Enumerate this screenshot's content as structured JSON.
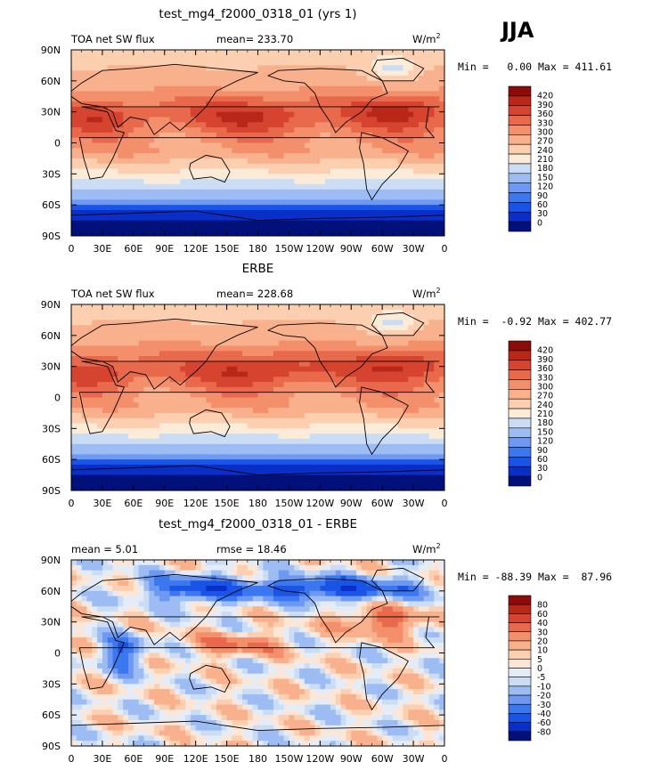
{
  "season": "JJA",
  "units": "W/m",
  "units_exp": "2",
  "xticks": [
    "0",
    "30E",
    "60E",
    "90E",
    "120E",
    "150E",
    "180",
    "150W",
    "120W",
    "90W",
    "60W",
    "30W",
    "0"
  ],
  "yticks": [
    "90N",
    "60N",
    "30N",
    "0",
    "30S",
    "60S",
    "90S"
  ],
  "colors": {
    "abs": [
      "#02107a",
      "#0a2fc8",
      "#1a54e6",
      "#3b77ef",
      "#6d99f2",
      "#9dbcf3",
      "#cbdcf5",
      "#fbebd9",
      "#fbcfb0",
      "#f9b08c",
      "#f48f6b",
      "#e8694b",
      "#d64430",
      "#b82718",
      "#8d0c0a"
    ],
    "diff": [
      "#02107a",
      "#0a2fc8",
      "#1a54e6",
      "#3b77ef",
      "#6d99f2",
      "#9dbcf3",
      "#cbdcf5",
      "#e4ecf8",
      "#fde6d6",
      "#fbcfb0",
      "#f9b08c",
      "#f48f6b",
      "#e8694b",
      "#d64430",
      "#b82718",
      "#8d0c0a"
    ]
  },
  "panels": [
    {
      "title": "test_mg4_f2000_0318_01 (yrs 1)",
      "left_label": "TOA net SW flux",
      "center_label": "mean= 233.70",
      "minmax": "Min =   0.00 Max = 411.61",
      "kind": "abs",
      "levels": [
        "420",
        "390",
        "360",
        "330",
        "300",
        "270",
        "240",
        "210",
        "180",
        "150",
        "120",
        "90",
        "60",
        "30",
        "0"
      ]
    },
    {
      "title": "ERBE",
      "left_label": "TOA net SW flux",
      "center_label": "mean= 228.68",
      "minmax": "Min =  -0.92 Max = 402.77",
      "kind": "abs",
      "levels": [
        "420",
        "390",
        "360",
        "330",
        "300",
        "270",
        "240",
        "210",
        "180",
        "150",
        "120",
        "90",
        "60",
        "30",
        "0"
      ]
    },
    {
      "title": "test_mg4_f2000_0318_01 - ERBE",
      "left_label": "mean =    5.01",
      "center_label": "rmse =   18.46",
      "minmax": "Min = -88.39 Max =  87.96",
      "kind": "diff",
      "levels": [
        "80",
        "60",
        "40",
        "30",
        "20",
        "10",
        "5",
        "0",
        "-5",
        "-10",
        "-20",
        "-30",
        "-40",
        "-60",
        "-80"
      ]
    }
  ],
  "chart_data": [
    {
      "type": "heatmap",
      "title": "test_mg4_f2000_0318_01 (yrs 1)",
      "variable": "TOA net SW flux",
      "units": "W/m2",
      "mean": 233.7,
      "min": 0.0,
      "max": 411.61,
      "xlim": [
        0,
        360
      ],
      "ylim": [
        -90,
        90
      ],
      "contour_levels": [
        0,
        30,
        60,
        90,
        120,
        150,
        180,
        210,
        240,
        270,
        300,
        330,
        360,
        390,
        420
      ]
    },
    {
      "type": "heatmap",
      "title": "ERBE",
      "variable": "TOA net SW flux",
      "units": "W/m2",
      "mean": 228.68,
      "min": -0.92,
      "max": 402.77,
      "xlim": [
        0,
        360
      ],
      "ylim": [
        -90,
        90
      ],
      "contour_levels": [
        0,
        30,
        60,
        90,
        120,
        150,
        180,
        210,
        240,
        270,
        300,
        330,
        360,
        390,
        420
      ]
    },
    {
      "type": "heatmap",
      "title": "test_mg4_f2000_0318_01 - ERBE",
      "units": "W/m2",
      "mean": 5.01,
      "rmse": 18.46,
      "min": -88.39,
      "max": 87.96,
      "xlim": [
        0,
        360
      ],
      "ylim": [
        -90,
        90
      ],
      "contour_levels": [
        -80,
        -60,
        -40,
        -30,
        -20,
        -10,
        -5,
        0,
        5,
        10,
        20,
        30,
        40,
        60,
        80
      ]
    }
  ]
}
